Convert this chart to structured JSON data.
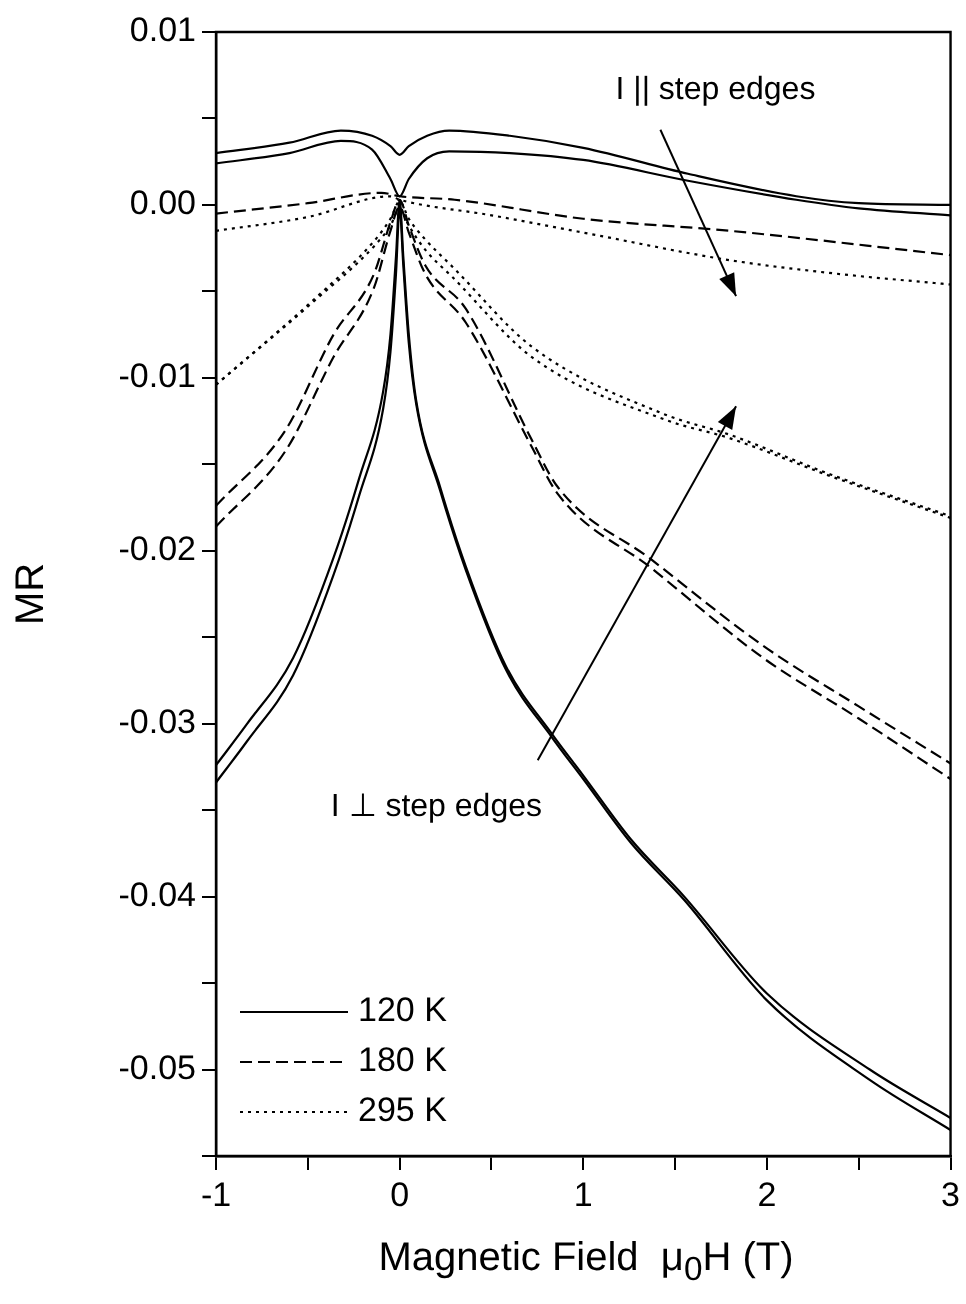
{
  "chart_data": {
    "type": "line",
    "xlabel": "Magnetic Field  μ$_{0}$H (T)",
    "ylabel": "MR",
    "xlim": [
      -1,
      3
    ],
    "ylim": [
      -0.055,
      0.01
    ],
    "xticks": [
      -1,
      {
        "value": -0.5,
        "label": null
      },
      0,
      {
        "value": 0.5,
        "label": null
      },
      1,
      {
        "value": 1.5,
        "label": null
      },
      2,
      {
        "value": 2.5,
        "label": null
      },
      3
    ],
    "yticks": [
      {
        "value": -0.055,
        "label": null
      },
      -0.05,
      {
        "value": -0.045,
        "label": null
      },
      -0.04,
      {
        "value": -0.035,
        "label": null
      },
      -0.03,
      {
        "value": -0.025,
        "label": null
      },
      -0.02,
      {
        "value": -0.015,
        "label": null
      },
      -0.01,
      {
        "value": -0.005,
        "label": null
      },
      {
        "value": 0,
        "label": "0.00"
      },
      {
        "value": 0.005,
        "label": null
      },
      0.01
    ],
    "marker": "none",
    "legend": "bottom left",
    "annotations": [
      "I || step edges",
      "I ⊥ step edges"
    ],
    "series": [
      {
        "name": "120 K",
        "color": "#000000",
        "line_style": "solid",
        "x": [
          -1,
          -0.6,
          -0.32,
          -0.15,
          -0.05,
          0,
          0.05,
          0.15,
          0.27,
          0.6,
          1.0,
          1.57,
          2.16,
          2.5,
          3
        ],
        "values": [
          0.003,
          0.0036,
          0.0043,
          0.004,
          0.0034,
          0.0029,
          0.0034,
          0.004,
          0.0043,
          0.004,
          0.0033,
          0.0018,
          0.0005,
          0.0001,
          0.0
        ]
      },
      {
        "name": "180 K",
        "color": "#000000",
        "line_style": "dashed",
        "x": [
          -1,
          -0.5,
          -0.1,
          0,
          0.3,
          1.0,
          1.8,
          3
        ],
        "values": [
          -0.0005,
          0.0001,
          0.0007,
          0.0005,
          0.0003,
          -0.0008,
          -0.0015,
          -0.0029
        ]
      },
      {
        "name": "295 K",
        "color": "#000000",
        "line_style": "dotted",
        "x": [
          -1,
          -0.5,
          -0.05,
          0,
          0.5,
          1.0,
          1.8,
          2.4,
          3
        ],
        "values": [
          -0.0015,
          -0.0007,
          0.0005,
          0.0003,
          -0.0006,
          -0.0016,
          -0.0032,
          -0.004,
          -0.0046
        ]
      },
      {
        "color": "#000000",
        "line_style": "solid",
        "x": [
          -1,
          -0.6,
          -0.32,
          -0.15,
          -0.05,
          0,
          0.05,
          0.15,
          0.27,
          0.6,
          1.0,
          1.57,
          2.16,
          2.5,
          3
        ],
        "values": [
          0.0024,
          0.003,
          0.0037,
          0.0032,
          0.0015,
          0.0005,
          0.0015,
          0.0027,
          0.0031,
          0.003,
          0.0026,
          0.0014,
          0.0003,
          -0.0002,
          -0.0006
        ]
      },
      {
        "color": "#000000",
        "line_style": "solid",
        "x": [
          -1,
          -0.83,
          -0.58,
          -0.36,
          -0.22,
          -0.09,
          -0.05,
          -0.02,
          0,
          0.02,
          0.05,
          0.09,
          0.22,
          0.36,
          0.58,
          0.83,
          1.0,
          1.26,
          1.55,
          2.0,
          2.56,
          3
        ],
        "values": [
          -0.0324,
          -0.03,
          -0.0262,
          -0.0204,
          -0.0158,
          -0.0108,
          -0.0075,
          -0.003,
          0.0003,
          -0.003,
          -0.0075,
          -0.0113,
          -0.0163,
          -0.0209,
          -0.0267,
          -0.0306,
          -0.033,
          -0.0367,
          -0.04,
          -0.0456,
          -0.05,
          -0.0528
        ]
      },
      {
        "color": "#000000",
        "line_style": "solid",
        "x": [
          -1,
          -0.83,
          -0.58,
          -0.36,
          -0.22,
          -0.09,
          -0.05,
          -0.02,
          0,
          0.02,
          0.05,
          0.09,
          0.22,
          0.36,
          0.58,
          0.83,
          1.0,
          1.26,
          1.55,
          2.0,
          2.56,
          3
        ],
        "values": [
          -0.0334,
          -0.031,
          -0.0272,
          -0.0214,
          -0.0168,
          -0.0118,
          -0.0085,
          -0.004,
          -0.0002,
          -0.0035,
          -0.008,
          -0.0115,
          -0.0165,
          -0.0211,
          -0.0269,
          -0.0308,
          -0.0332,
          -0.0369,
          -0.0402,
          -0.046,
          -0.0506,
          -0.0535
        ]
      },
      {
        "color": "#000000",
        "line_style": "dashed",
        "x": [
          -1,
          -0.62,
          -0.36,
          -0.14,
          -0.05,
          0,
          0.05,
          0.14,
          0.36,
          0.72,
          0.86,
          1.37,
          1.98,
          2.5,
          3
        ],
        "values": [
          -0.0174,
          -0.013,
          -0.0075,
          -0.004,
          -0.001,
          0.0003,
          -0.0012,
          -0.0035,
          -0.006,
          -0.0136,
          -0.0163,
          -0.0205,
          -0.0255,
          -0.029,
          -0.0323
        ]
      },
      {
        "color": "#000000",
        "line_style": "dashed",
        "x": [
          -1,
          -0.62,
          -0.36,
          -0.14,
          -0.05,
          0,
          0.05,
          0.14,
          0.36,
          0.72,
          0.86,
          1.37,
          1.98,
          2.5,
          3
        ],
        "values": [
          -0.0186,
          -0.0142,
          -0.0088,
          -0.0048,
          -0.0015,
          -0.0001,
          -0.0016,
          -0.004,
          -0.0068,
          -0.014,
          -0.0167,
          -0.021,
          -0.0262,
          -0.0297,
          -0.0332
        ]
      },
      {
        "color": "#000000",
        "line_style": "dotted",
        "x": [
          -1,
          -0.47,
          -0.14,
          -0.05,
          0,
          0.05,
          0.14,
          0.29,
          0.72,
          1.44,
          1.8,
          2.35,
          3
        ],
        "values": [
          -0.0104,
          -0.0055,
          -0.0021,
          -0.0008,
          0.0002,
          -0.0008,
          -0.002,
          -0.0036,
          -0.0082,
          -0.0121,
          -0.0133,
          -0.0156,
          -0.018
        ]
      },
      {
        "color": "#000000",
        "line_style": "dotted",
        "x": [
          -1,
          -0.47,
          -0.14,
          -0.05,
          0,
          0.05,
          0.14,
          0.29,
          0.72,
          1.44,
          1.8,
          2.35,
          3
        ],
        "values": [
          -0.0104,
          -0.0056,
          -0.0024,
          -0.0012,
          -0.0002,
          -0.0012,
          -0.0026,
          -0.0042,
          -0.0088,
          -0.0124,
          -0.0135,
          -0.0157,
          -0.0181
        ]
      }
    ]
  }
}
